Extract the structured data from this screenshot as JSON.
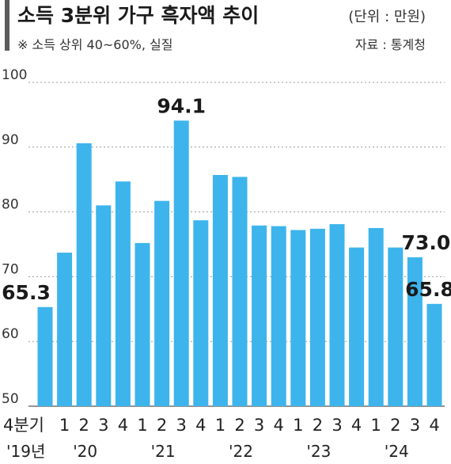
{
  "header": {
    "title": "소득 3분위 가구 흑자액 추이",
    "unit": "(단위 : 만원)",
    "note": "※ 소득 상위 40~60%, 실질",
    "source": "자료 : 통계청"
  },
  "chart_data": {
    "type": "bar",
    "title": "소득 3분위 가구 흑자액 추이",
    "unit": "(단위 : 만원)",
    "categories": [
      "4분기",
      "1",
      "2",
      "3",
      "4",
      "1",
      "2",
      "3",
      "4",
      "1",
      "2",
      "3",
      "4",
      "1",
      "2",
      "3",
      "4",
      "1",
      "2",
      "3",
      "4"
    ],
    "year_labels": [
      {
        "label": "'19년",
        "index": 0
      },
      {
        "label": "'20",
        "index": 2
      },
      {
        "label": "'21",
        "index": 6
      },
      {
        "label": "'22",
        "index": 10
      },
      {
        "label": "'23",
        "index": 14
      },
      {
        "label": "'24",
        "index": 18
      }
    ],
    "values": [
      65.3,
      73.7,
      90.6,
      81.0,
      84.7,
      75.2,
      81.7,
      94.1,
      78.7,
      85.7,
      85.4,
      77.9,
      77.8,
      77.2,
      77.4,
      78.1,
      74.5,
      77.5,
      74.5,
      73.0,
      65.8
    ],
    "labeled_values": [
      {
        "index": 0,
        "text": "65.3"
      },
      {
        "index": 7,
        "text": "94.1"
      },
      {
        "index": 19,
        "text": "73.0"
      },
      {
        "index": 20,
        "text": "65.8"
      }
    ],
    "ylim": [
      50,
      100
    ],
    "yticks": [
      50,
      60,
      70,
      80,
      90,
      100
    ],
    "grid": true,
    "bar_color": "#3db4ec",
    "title_bar_color": "#5c5c5c"
  }
}
